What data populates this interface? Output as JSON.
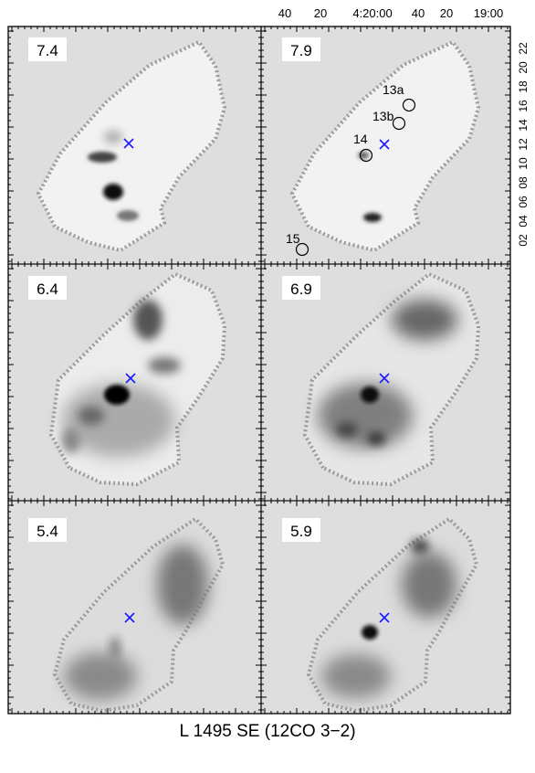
{
  "top_axis_labels": [
    "40",
    "20",
    "4:20:00",
    "40",
    "20",
    "19:00"
  ],
  "right_axis_labels": [
    "22",
    "20",
    "18",
    "16",
    "14",
    "12",
    "10",
    "08",
    "06",
    "04",
    "02"
  ],
  "panels": [
    {
      "velocity": "7.4"
    },
    {
      "velocity": "7.9"
    },
    {
      "velocity": "6.4"
    },
    {
      "velocity": "6.9"
    },
    {
      "velocity": "5.4"
    },
    {
      "velocity": "5.9"
    }
  ],
  "sources": [
    {
      "label": "13a"
    },
    {
      "label": "13b"
    },
    {
      "label": "14"
    },
    {
      "label": "15"
    }
  ],
  "caption": "L 1495 SE (12CO 3−2)",
  "colors": {
    "panel_bg": "#dedede",
    "marker": "#1a1aff",
    "emission": "#000000"
  }
}
